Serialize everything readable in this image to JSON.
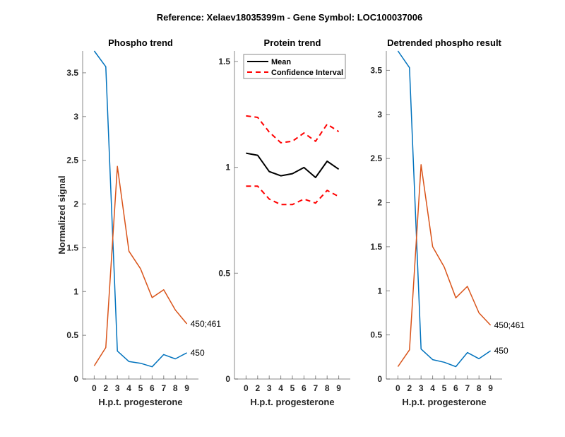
{
  "figure": {
    "title": "Reference:  Xelaev18035399m - Gene Symbol:  LOC100037006"
  },
  "colors": {
    "blue": "#0072BD",
    "orange": "#D95319",
    "mean": "#000000",
    "ci": "#FF0000"
  },
  "chart_data": [
    {
      "id": "phospho",
      "type": "line",
      "title": "Phospho trend",
      "xlabel": "H.p.t. progesterone",
      "ylabel": "Normalized signal",
      "categories": [
        "0",
        "2",
        "3",
        "4",
        "5",
        "6",
        "7",
        "8",
        "9"
      ],
      "ylim": [
        0,
        3.75
      ],
      "yticks": [
        0,
        0.5,
        1,
        1.5,
        2,
        2.5,
        3,
        3.5
      ],
      "ytick_labels": [
        "0",
        "0.5",
        "1",
        "1.5",
        "2",
        "2.5",
        "3",
        "3.5"
      ],
      "grid": false,
      "series": [
        {
          "name": "450",
          "color": "#0072BD",
          "values": [
            3.75,
            3.57,
            0.32,
            0.2,
            0.18,
            0.14,
            0.28,
            0.23,
            0.3
          ]
        },
        {
          "name": "450;461",
          "color": "#D95319",
          "values": [
            0.15,
            0.36,
            2.43,
            1.46,
            1.26,
            0.93,
            1.02,
            0.79,
            0.63
          ]
        }
      ]
    },
    {
      "id": "protein",
      "type": "line",
      "title": "Protein trend",
      "xlabel": "H.p.t. progesterone",
      "ylabel": "",
      "categories": [
        "0",
        "2",
        "3",
        "4",
        "5",
        "6",
        "7",
        "8",
        "9"
      ],
      "ylim": [
        0,
        1.55
      ],
      "yticks": [
        0,
        0.5,
        1,
        1.5
      ],
      "ytick_labels": [
        "0",
        "0.5",
        "1",
        "1.5"
      ],
      "grid": false,
      "legend": {
        "location": "top-left",
        "entries": [
          "Mean",
          "Confidence Interval"
        ]
      },
      "series": [
        {
          "name": "Mean",
          "color": "#000000",
          "style": "solid",
          "values": [
            1.067,
            1.057,
            0.98,
            0.96,
            0.97,
            0.999,
            0.952,
            1.029,
            0.991
          ]
        },
        {
          "name": "Confidence Interval (upper)",
          "color": "#FF0000",
          "style": "dashed",
          "values": [
            1.243,
            1.236,
            1.167,
            1.116,
            1.123,
            1.162,
            1.123,
            1.204,
            1.169
          ]
        },
        {
          "name": "Confidence Interval (lower)",
          "color": "#FF0000",
          "style": "dashed",
          "values": [
            0.911,
            0.911,
            0.85,
            0.824,
            0.824,
            0.85,
            0.831,
            0.891,
            0.862
          ]
        }
      ]
    },
    {
      "id": "detrended",
      "type": "line",
      "title": "Detrended phospho result",
      "xlabel": "H.p.t. progesterone",
      "ylabel": "",
      "categories": [
        "0",
        "2",
        "3",
        "4",
        "5",
        "6",
        "7",
        "8",
        "9"
      ],
      "ylim": [
        0,
        3.72
      ],
      "yticks": [
        0,
        0.5,
        1,
        1.5,
        2,
        2.5,
        3,
        3.5
      ],
      "ytick_labels": [
        "0",
        "0.5",
        "1",
        "1.5",
        "2",
        "2.5",
        "3",
        "3.5"
      ],
      "grid": false,
      "series": [
        {
          "name": "450",
          "color": "#0072BD",
          "values": [
            3.72,
            3.53,
            0.34,
            0.22,
            0.19,
            0.14,
            0.3,
            0.23,
            0.32
          ]
        },
        {
          "name": "450;461",
          "color": "#D95319",
          "values": [
            0.14,
            0.33,
            2.43,
            1.5,
            1.27,
            0.92,
            1.05,
            0.75,
            0.61
          ]
        }
      ]
    }
  ]
}
